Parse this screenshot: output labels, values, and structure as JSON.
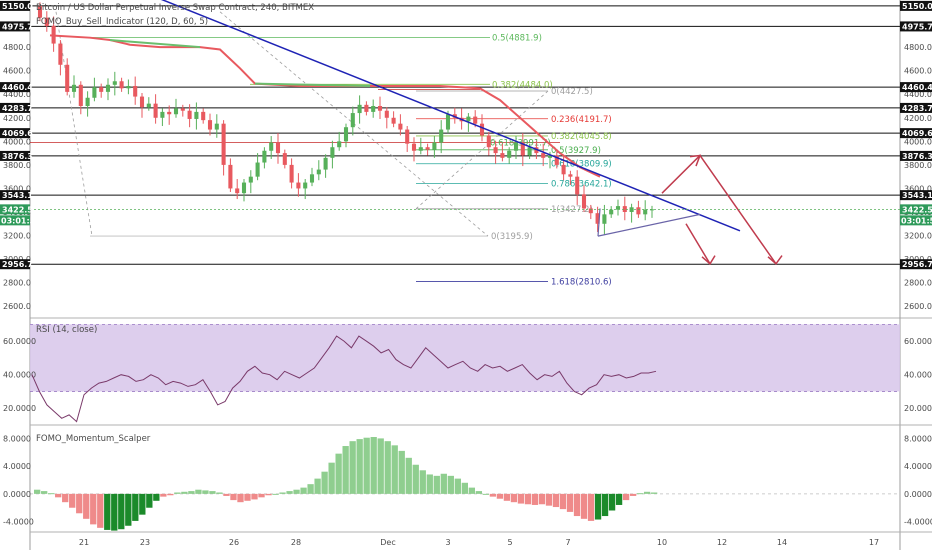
{
  "chart_data": [
    {
      "type": "candlestick",
      "title": "Bitcoin / US Dollar Perpetual Inverse Swap Contract, 240, BITMEX",
      "indicator_label": "FOMO_Buy_Sell_Indicator (120, D, 60, 5)",
      "x_ticks": [
        "21",
        "23",
        "26",
        "28",
        "Dec",
        "3",
        "5",
        "7",
        "10",
        "12",
        "14",
        "17"
      ],
      "y_ticks": [
        2600,
        2800,
        3000,
        3200,
        3400,
        3600,
        3800,
        4000,
        4200,
        4400,
        4600,
        4800
      ],
      "ylim": [
        2500,
        5200
      ],
      "horizontal_levels": [
        {
          "value": 5150.0,
          "label": "5150.0"
        },
        {
          "value": 4975.7,
          "label": "4975.7"
        },
        {
          "value": 4460.4,
          "label": "4460.4"
        },
        {
          "value": 4283.7,
          "label": "4283.7"
        },
        {
          "value": 4069.6,
          "label": "4069.6"
        },
        {
          "value": 3876.3,
          "label": "3876.3"
        },
        {
          "value": 3543.1,
          "label": "3543.1"
        },
        {
          "value": 2956.7,
          "label": "2956.7"
        }
      ],
      "current_price": {
        "value": 3422.5,
        "label": "3422.5",
        "countdown": "03:01:52"
      },
      "fib_upper": [
        {
          "ratio": "0.5",
          "label": "0.5(4881.9)",
          "value": 4881.9,
          "color": "#5cb85c"
        },
        {
          "ratio": "0.382",
          "label": "0.382(4484.0)",
          "value": 4484.0,
          "color": "#8bc34a"
        }
      ],
      "fib_lower": [
        {
          "label": "0(4427.5)",
          "value": 4427.5,
          "color": "#9e9e9e"
        },
        {
          "label": "0.236(4191.7)",
          "value": 4191.7,
          "color": "#e53935"
        },
        {
          "label": "0.382(4045.8)",
          "value": 4045.8,
          "color": "#8bc34a"
        },
        {
          "label": "0.5(3927.9)",
          "value": 3927.9,
          "color": "#4caf50"
        },
        {
          "label": "0.618(3809.9)",
          "value": 3809.9,
          "color": "#26a69a"
        },
        {
          "label": "0.786(3642.1)",
          "value": 3642.1,
          "color": "#26a69a"
        },
        {
          "label": "1(3427.2)",
          "value": 3427.2,
          "color": "#9e9e9e"
        },
        {
          "label": "1.618(2810.6)",
          "value": 2810.6,
          "color": "#3f3fa0"
        }
      ],
      "fib_mid": [
        {
          "label": "0.618(3991.7)",
          "value": 3991.7,
          "color": "#4caf50"
        },
        {
          "label": "0(3195.9)",
          "value": 3195.9,
          "color": "#9e9e9e"
        }
      ],
      "closes": [
        5050,
        4980,
        4830,
        4650,
        4420,
        4480,
        4300,
        4370,
        4460,
        4420,
        4480,
        4510,
        4450,
        4470,
        4380,
        4290,
        4320,
        4200,
        4250,
        4230,
        4280,
        4260,
        4190,
        4250,
        4180,
        4100,
        4150,
        3800,
        3600,
        3560,
        3650,
        3700,
        3820,
        3920,
        3990,
        3900,
        3800,
        3650,
        3600,
        3650,
        3720,
        3760,
        3860,
        3950,
        4000,
        4120,
        4240,
        4310,
        4250,
        4300,
        4260,
        4200,
        4150,
        4100,
        3980,
        3920,
        3950,
        3930,
        3990,
        4100,
        4230,
        4200,
        4170,
        4210,
        4150,
        4050,
        3950,
        3900,
        3860,
        3920,
        3990,
        3880,
        3950,
        3900,
        3860,
        3880,
        3800,
        3720,
        3700,
        3550,
        3430,
        3390,
        3300,
        3380,
        3420,
        3450,
        3400,
        3440,
        3380,
        3420,
        3422.5
      ],
      "colors": {
        "up": "#57b05a",
        "down": "#e8595f",
        "ma": "#e8595f",
        "ma_green": "#6bbf6d",
        "trend": "#1f23b5",
        "projection": "#c03c4e",
        "wedge": "#6a64a8"
      }
    },
    {
      "type": "line",
      "title": "RSI (14, close)",
      "y_ticks": [
        20,
        40,
        60
      ],
      "tick_labels": [
        "20.0000",
        "40.0000",
        "60.0000"
      ],
      "ylim": [
        10,
        72
      ],
      "band": [
        30,
        70
      ],
      "values": [
        40,
        30,
        22,
        18,
        14,
        16,
        12,
        28,
        32,
        35,
        36,
        38,
        40,
        39,
        36,
        37,
        40,
        38,
        34,
        36,
        35,
        33,
        34,
        37,
        30,
        22,
        24,
        32,
        36,
        42,
        45,
        41,
        40,
        37,
        42,
        40,
        38,
        41,
        44,
        50,
        56,
        63,
        60,
        56,
        63,
        60,
        57,
        53,
        55,
        49,
        46,
        44,
        50,
        56,
        52,
        48,
        44,
        46,
        48,
        44,
        42,
        46,
        44,
        45,
        42,
        44,
        46,
        41,
        37,
        40,
        39,
        42,
        35,
        30,
        28,
        32,
        34,
        40,
        39,
        40,
        38,
        39,
        41,
        41,
        42
      ]
    },
    {
      "type": "bar",
      "title": "FOMO_Momentum_Scalper",
      "y_ticks": [
        -4,
        0,
        4,
        8
      ],
      "tick_labels": [
        "-4.0000",
        "0.0000",
        "4.0000",
        "8.0000"
      ],
      "ylim": [
        -5.5,
        9.5
      ],
      "values": [
        0.6,
        0.4,
        0.1,
        -0.5,
        -1.2,
        -2.0,
        -2.8,
        -3.6,
        -4.4,
        -4.9,
        -5.2,
        -5.3,
        -5.1,
        -4.6,
        -3.9,
        -3.0,
        -2.0,
        -1.0,
        -0.4,
        -0.2,
        0.2,
        0.3,
        0.4,
        0.6,
        0.5,
        0.4,
        0.2,
        -0.3,
        -0.9,
        -1.2,
        -1.0,
        -0.8,
        -0.5,
        -0.2,
        0.0,
        0.2,
        0.4,
        0.6,
        0.9,
        1.4,
        2.2,
        3.2,
        4.5,
        5.8,
        6.9,
        7.6,
        7.9,
        8.1,
        8.2,
        8.0,
        7.6,
        7.0,
        6.2,
        5.2,
        4.2,
        3.4,
        2.8,
        2.6,
        2.9,
        2.6,
        2.2,
        1.6,
        0.9,
        0.4,
        0.0,
        -0.4,
        -0.7,
        -1.0,
        -1.2,
        -1.4,
        -1.5,
        -1.6,
        -1.5,
        -1.7,
        -1.9,
        -2.2,
        -2.6,
        -3.2,
        -3.6,
        -3.9,
        -3.7,
        -3.2,
        -2.4,
        -1.6,
        -0.9,
        -0.3,
        0.1,
        0.3,
        0.2
      ],
      "colors": {
        "pos_light": "#8fce8f",
        "pos_dark": "#2e7d32",
        "neg_light": "#ef8a8a",
        "neg_dark": "#1b8a2a"
      }
    }
  ]
}
